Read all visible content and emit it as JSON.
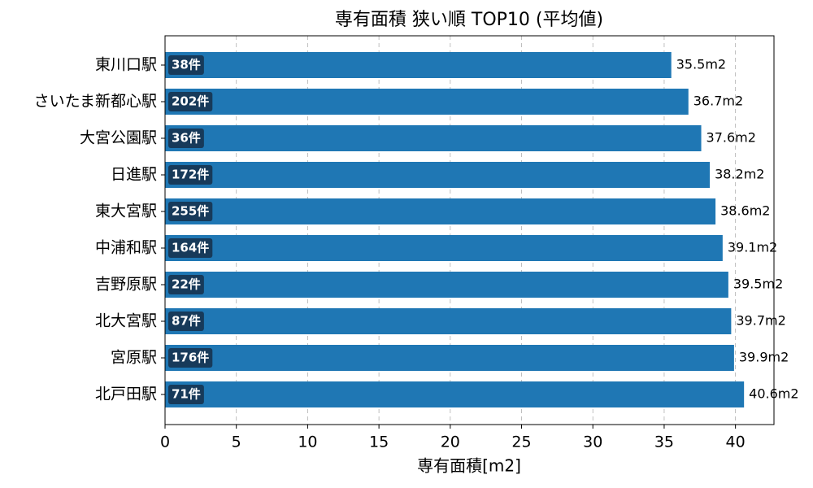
{
  "chart_data": {
    "type": "barh",
    "title": "専有面積 狭い順 TOP10 (平均値)",
    "x_label": "専有面積[m2]",
    "categories": [
      "東川口駅",
      "さいたま新都心駅",
      "大宮公園駅",
      "日進駅",
      "東大宮駅",
      "中浦和駅",
      "吉野原駅",
      "北大宮駅",
      "宮原駅",
      "北戸田駅"
    ],
    "values": [
      35.5,
      36.7,
      37.6,
      38.2,
      38.6,
      39.1,
      39.5,
      39.7,
      39.9,
      40.6
    ],
    "value_labels": [
      "35.5m2",
      "36.7m2",
      "37.6m2",
      "38.2m2",
      "38.6m2",
      "39.1m2",
      "39.5m2",
      "39.7m2",
      "39.9m2",
      "40.6m2"
    ],
    "count_labels": [
      "38件",
      "202件",
      "36件",
      "172件",
      "255件",
      "164件",
      "22件",
      "87件",
      "176件",
      "71件"
    ],
    "color": "#1f77b4",
    "xlim": [
      0,
      42.7
    ],
    "xticks": [
      0,
      5,
      10,
      15,
      20,
      25,
      30,
      35,
      40
    ],
    "grid": true
  }
}
